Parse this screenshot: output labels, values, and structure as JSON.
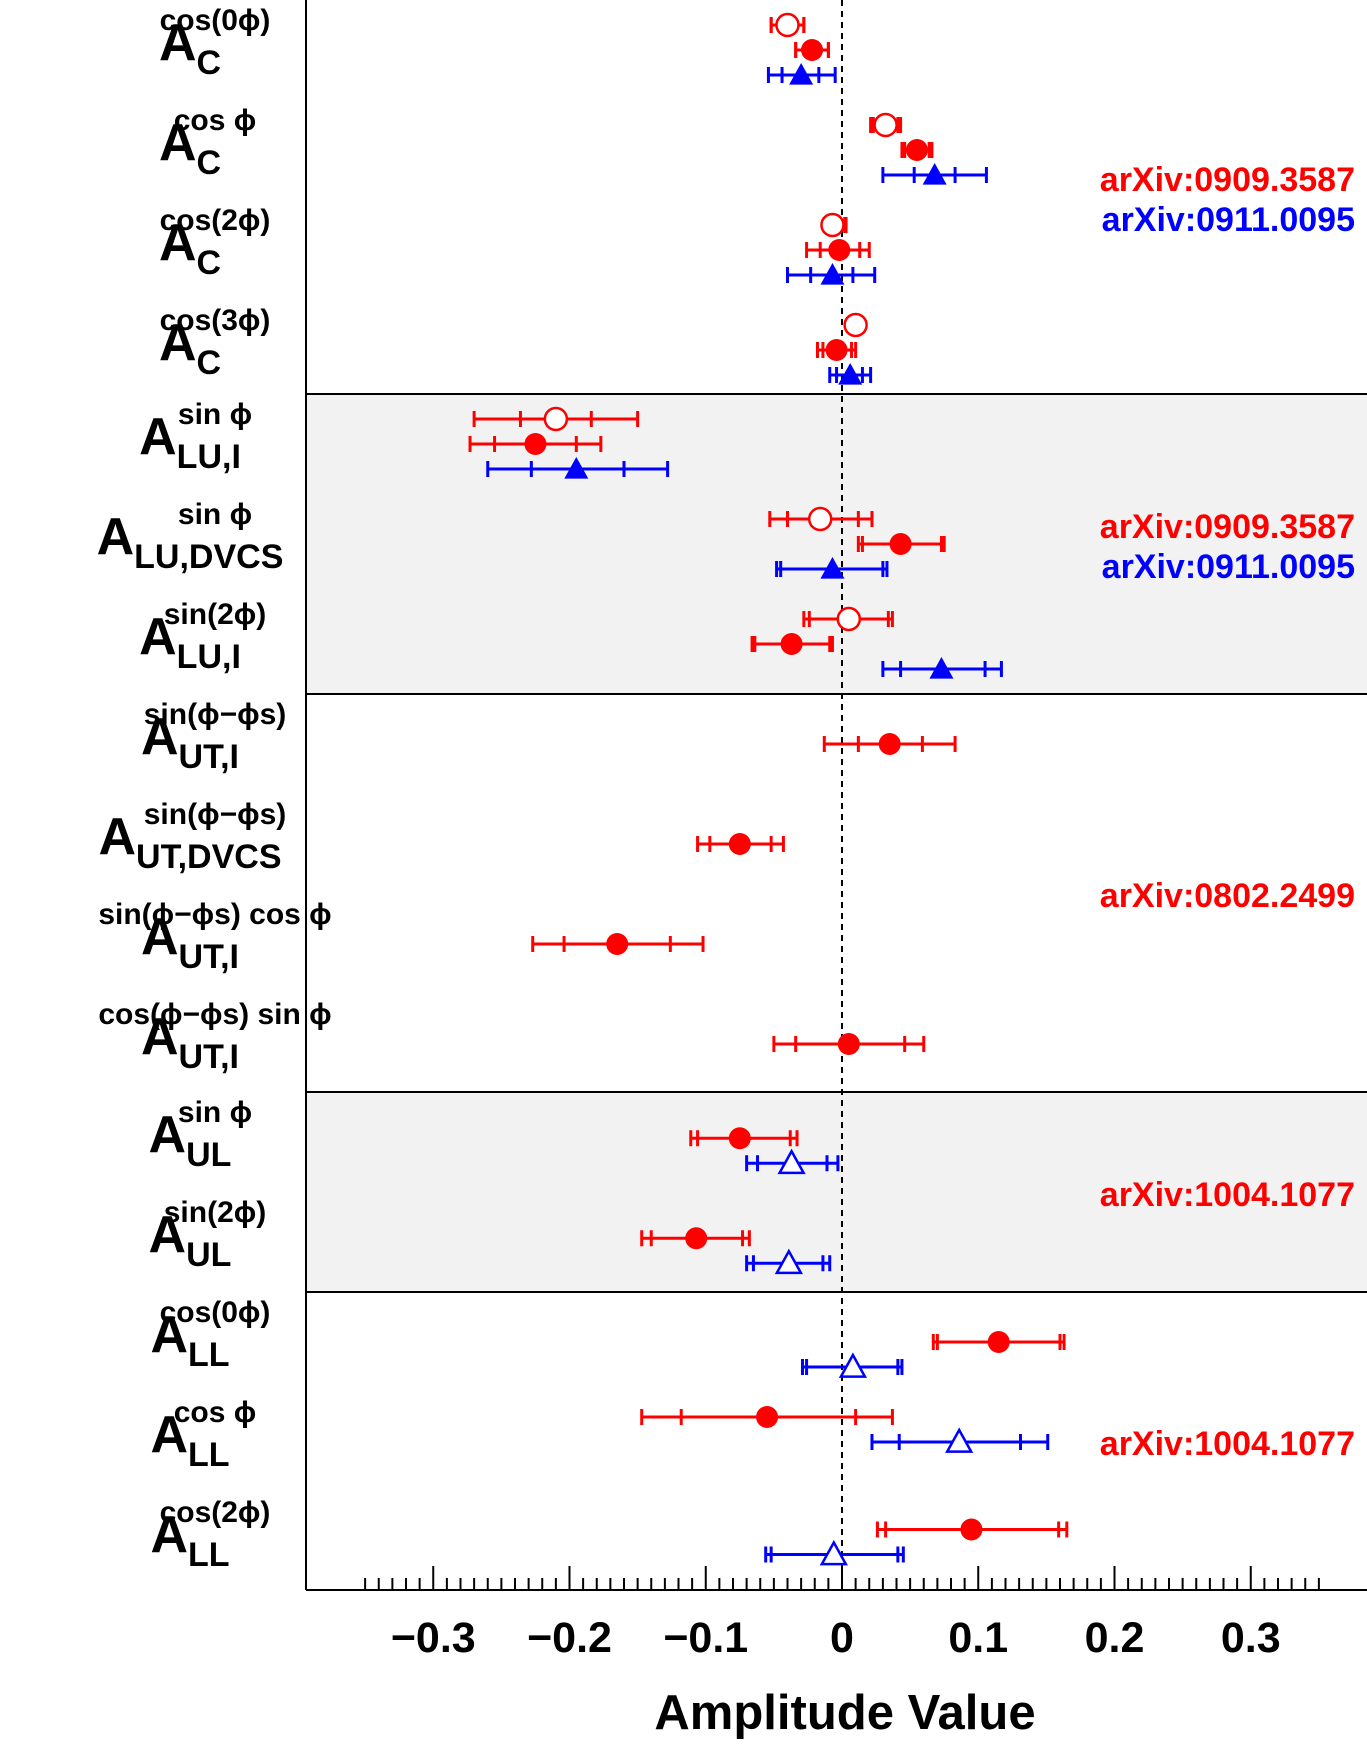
{
  "chart_data": {
    "type": "scatter",
    "xlabel": "Amplitude Value",
    "xlim": [
      -0.35,
      0.35
    ],
    "x_ticks": [
      {
        "value": -0.3,
        "label": "−0.3"
      },
      {
        "value": -0.2,
        "label": "−0.2"
      },
      {
        "value": -0.1,
        "label": "−0.1"
      },
      {
        "value": 0,
        "label": "0"
      },
      {
        "value": 0.1,
        "label": "0.1"
      },
      {
        "value": 0.2,
        "label": "0.2"
      },
      {
        "value": 0.3,
        "label": "0.3"
      }
    ],
    "reference_line": 0,
    "colors": {
      "red": "#ff0000",
      "blue": "#0000ff",
      "band": "#f2f2f2"
    },
    "marker_legend": {
      "filled-circle": "red",
      "open-circle": "red",
      "filled-triangle": "blue",
      "open-triangle": "blue"
    },
    "rows": [
      {
        "label": "A_C^{cos(0φ)}",
        "main": "A",
        "sub": "C",
        "sup": "cos(0ϕ)"
      },
      {
        "label": "A_C^{cos φ}",
        "main": "A",
        "sub": "C",
        "sup": "cos ϕ"
      },
      {
        "label": "A_C^{cos(2φ)}",
        "main": "A",
        "sub": "C",
        "sup": "cos(2ϕ)"
      },
      {
        "label": "A_C^{cos(3φ)}",
        "main": "A",
        "sub": "C",
        "sup": "cos(3ϕ)"
      },
      {
        "label": "A_LU,I^{sin φ}",
        "main": "A",
        "sub": "LU,I",
        "sup": "sin ϕ"
      },
      {
        "label": "A_LU,DVCS^{sin φ}",
        "main": "A",
        "sub": "LU,DVCS",
        "sup": "sin ϕ"
      },
      {
        "label": "A_LU,I^{sin(2φ)}",
        "main": "A",
        "sub": "LU,I",
        "sup": "sin(2ϕ)"
      },
      {
        "label": "A_UT,I^{sin(φ−φs)}",
        "main": "A",
        "sub": "UT,I",
        "sup": "sin(ϕ−ϕs)"
      },
      {
        "label": "A_UT,DVCS^{sin(φ−φs)}",
        "main": "A",
        "sub": "UT,DVCS",
        "sup": "sin(ϕ−ϕs)"
      },
      {
        "label": "A_UT,I^{sin(φ−φs) cos φ}",
        "main": "A",
        "sub": "UT,I",
        "sup": "sin(ϕ−ϕs) cos ϕ"
      },
      {
        "label": "A_UT,I^{cos(φ−φs) sin φ}",
        "main": "A",
        "sub": "UT,I",
        "sup": "cos(ϕ−ϕs) sin ϕ"
      },
      {
        "label": "A_UL^{sin φ}",
        "main": "A",
        "sub": "UL",
        "sup": "sin ϕ"
      },
      {
        "label": "A_UL^{sin(2φ)}",
        "main": "A",
        "sub": "UL",
        "sup": "sin(2ϕ)"
      },
      {
        "label": "A_LL^{cos(0φ)}",
        "main": "A",
        "sub": "LL",
        "sup": "cos(0ϕ)"
      },
      {
        "label": "A_LL^{cos φ}",
        "main": "A",
        "sub": "LL",
        "sup": "cos ϕ"
      },
      {
        "label": "A_LL^{cos(2φ)}",
        "main": "A",
        "sub": "LL",
        "sup": "cos(2ϕ)"
      }
    ],
    "groups": [
      {
        "rows": [
          0,
          3
        ],
        "shaded": false,
        "references": [
          {
            "text": "arXiv:0909.3587",
            "color": "red"
          },
          {
            "text": "arXiv:0911.0095",
            "color": "blue"
          }
        ]
      },
      {
        "rows": [
          4,
          6
        ],
        "shaded": true,
        "references": [
          {
            "text": "arXiv:0909.3587",
            "color": "red"
          },
          {
            "text": "arXiv:0911.0095",
            "color": "blue"
          }
        ]
      },
      {
        "rows": [
          7,
          10
        ],
        "shaded": false,
        "references": [
          {
            "text": "arXiv:0802.2499",
            "color": "red"
          }
        ]
      },
      {
        "rows": [
          11,
          12
        ],
        "shaded": true,
        "references": [
          {
            "text": "arXiv:1004.1077",
            "color": "red"
          }
        ]
      },
      {
        "rows": [
          13,
          15
        ],
        "shaded": false,
        "references": [
          {
            "text": "arXiv:1004.1077",
            "color": "red"
          }
        ]
      }
    ],
    "points": [
      {
        "row": 0,
        "level": 0,
        "marker": "open-circle",
        "color": "red",
        "value": -0.04,
        "stat": [
          -0.052,
          -0.028
        ],
        "total": [
          -0.052,
          -0.028
        ]
      },
      {
        "row": 0,
        "level": 1,
        "marker": "filled-circle",
        "color": "red",
        "value": -0.022,
        "stat": [
          -0.034,
          -0.01
        ],
        "total": [
          -0.034,
          -0.01
        ]
      },
      {
        "row": 0,
        "level": 2,
        "marker": "filled-triangle",
        "color": "blue",
        "value": -0.03,
        "stat": [
          -0.044,
          -0.017
        ],
        "total": [
          -0.054,
          -0.005
        ]
      },
      {
        "row": 1,
        "level": 0,
        "marker": "open-circle",
        "color": "red",
        "value": 0.032,
        "stat": [
          0.023,
          0.041
        ],
        "total": [
          0.021,
          0.043
        ]
      },
      {
        "row": 1,
        "level": 1,
        "marker": "filled-circle",
        "color": "red",
        "value": 0.055,
        "stat": [
          0.046,
          0.064
        ],
        "total": [
          0.044,
          0.066
        ]
      },
      {
        "row": 1,
        "level": 2,
        "marker": "filled-triangle",
        "color": "blue",
        "value": 0.068,
        "stat": [
          0.053,
          0.083
        ],
        "total": [
          0.03,
          0.106
        ]
      },
      {
        "row": 2,
        "level": 0,
        "marker": "open-circle",
        "color": "red",
        "value": -0.007,
        "stat": [
          -0.012,
          0.002
        ],
        "total": [
          -0.013,
          0.003
        ]
      },
      {
        "row": 2,
        "level": 1,
        "marker": "filled-circle",
        "color": "red",
        "value": -0.002,
        "stat": [
          -0.016,
          0.013
        ],
        "total": [
          -0.026,
          0.02
        ]
      },
      {
        "row": 2,
        "level": 2,
        "marker": "filled-triangle",
        "color": "blue",
        "value": -0.007,
        "stat": [
          -0.023,
          0.008
        ],
        "total": [
          -0.04,
          0.024
        ]
      },
      {
        "row": 3,
        "level": 0,
        "marker": "open-circle",
        "color": "red",
        "value": 0.01,
        "stat": [
          0.005,
          0.014
        ],
        "total": [
          0.004,
          0.015
        ]
      },
      {
        "row": 3,
        "level": 1,
        "marker": "filled-circle",
        "color": "red",
        "value": -0.004,
        "stat": [
          -0.014,
          0.007
        ],
        "total": [
          -0.018,
          0.01
        ]
      },
      {
        "row": 3,
        "level": 2,
        "marker": "filled-triangle",
        "color": "blue",
        "value": 0.006,
        "stat": [
          -0.004,
          0.015
        ],
        "total": [
          -0.009,
          0.021
        ]
      },
      {
        "row": 4,
        "level": 0,
        "marker": "open-circle",
        "color": "red",
        "value": -0.21,
        "stat": [
          -0.236,
          -0.184
        ],
        "total": [
          -0.27,
          -0.15
        ]
      },
      {
        "row": 4,
        "level": 1,
        "marker": "filled-circle",
        "color": "red",
        "value": -0.225,
        "stat": [
          -0.255,
          -0.195
        ],
        "total": [
          -0.273,
          -0.177
        ]
      },
      {
        "row": 4,
        "level": 2,
        "marker": "filled-triangle",
        "color": "blue",
        "value": -0.195,
        "stat": [
          -0.228,
          -0.16
        ],
        "total": [
          -0.26,
          -0.128
        ]
      },
      {
        "row": 5,
        "level": 0,
        "marker": "open-circle",
        "color": "red",
        "value": -0.016,
        "stat": [
          -0.04,
          0.012
        ],
        "total": [
          -0.053,
          0.022
        ]
      },
      {
        "row": 5,
        "level": 1,
        "marker": "filled-circle",
        "color": "red",
        "value": 0.043,
        "stat": [
          0.015,
          0.073
        ],
        "total": [
          0.012,
          0.075
        ]
      },
      {
        "row": 5,
        "level": 2,
        "marker": "filled-triangle",
        "color": "blue",
        "value": -0.007,
        "stat": [
          -0.045,
          0.03
        ],
        "total": [
          -0.048,
          0.033
        ]
      },
      {
        "row": 6,
        "level": 0,
        "marker": "open-circle",
        "color": "red",
        "value": 0.005,
        "stat": [
          -0.024,
          0.034
        ],
        "total": [
          -0.028,
          0.037
        ]
      },
      {
        "row": 6,
        "level": 1,
        "marker": "filled-circle",
        "color": "red",
        "value": -0.037,
        "stat": [
          -0.064,
          -0.009
        ],
        "total": [
          -0.066,
          -0.007
        ]
      },
      {
        "row": 6,
        "level": 2,
        "marker": "filled-triangle",
        "color": "blue",
        "value": 0.073,
        "stat": [
          0.043,
          0.105
        ],
        "total": [
          0.03,
          0.117
        ]
      },
      {
        "row": 7,
        "level": 1,
        "marker": "filled-circle",
        "color": "red",
        "value": 0.035,
        "stat": [
          0.012,
          0.059
        ],
        "total": [
          -0.013,
          0.083
        ]
      },
      {
        "row": 8,
        "level": 1,
        "marker": "filled-circle",
        "color": "red",
        "value": -0.075,
        "stat": [
          -0.097,
          -0.052
        ],
        "total": [
          -0.106,
          -0.043
        ]
      },
      {
        "row": 9,
        "level": 1,
        "marker": "filled-circle",
        "color": "red",
        "value": -0.165,
        "stat": [
          -0.204,
          -0.126
        ],
        "total": [
          -0.227,
          -0.102
        ]
      },
      {
        "row": 10,
        "level": 1,
        "marker": "filled-circle",
        "color": "red",
        "value": 0.005,
        "stat": [
          -0.034,
          0.046
        ],
        "total": [
          -0.05,
          0.06
        ]
      },
      {
        "row": 11,
        "level": 0.85,
        "marker": "filled-circle",
        "color": "red",
        "value": -0.075,
        "stat": [
          -0.106,
          -0.038
        ],
        "total": [
          -0.111,
          -0.033
        ]
      },
      {
        "row": 11,
        "level": 1.85,
        "marker": "open-triangle",
        "color": "blue",
        "value": -0.037,
        "stat": [
          -0.062,
          -0.011
        ],
        "total": [
          -0.07,
          -0.003
        ]
      },
      {
        "row": 12,
        "level": 0.85,
        "marker": "filled-circle",
        "color": "red",
        "value": -0.107,
        "stat": [
          -0.14,
          -0.073
        ],
        "total": [
          -0.147,
          -0.068
        ]
      },
      {
        "row": 12,
        "level": 1.85,
        "marker": "open-triangle",
        "color": "blue",
        "value": -0.039,
        "stat": [
          -0.065,
          -0.014
        ],
        "total": [
          -0.07,
          -0.009
        ]
      },
      {
        "row": 13,
        "level": 1,
        "marker": "filled-circle",
        "color": "red",
        "value": 0.115,
        "stat": [
          0.07,
          0.16
        ],
        "total": [
          0.067,
          0.163
        ]
      },
      {
        "row": 13,
        "level": 2,
        "marker": "open-triangle",
        "color": "blue",
        "value": 0.008,
        "stat": [
          -0.026,
          0.041
        ],
        "total": [
          -0.029,
          0.044
        ]
      },
      {
        "row": 14,
        "level": 0,
        "marker": "filled-circle",
        "color": "red",
        "value": -0.055,
        "stat": [
          -0.118,
          0.01
        ],
        "total": [
          -0.147,
          0.037
        ]
      },
      {
        "row": 14,
        "level": 1,
        "marker": "open-triangle",
        "color": "blue",
        "value": 0.086,
        "stat": [
          0.042,
          0.131
        ],
        "total": [
          0.022,
          0.151
        ]
      },
      {
        "row": 15,
        "level": 0.5,
        "marker": "filled-circle",
        "color": "red",
        "value": 0.095,
        "stat": [
          0.032,
          0.159
        ],
        "total": [
          0.026,
          0.165
        ]
      },
      {
        "row": 15,
        "level": 1.5,
        "marker": "open-triangle",
        "color": "blue",
        "value": -0.006,
        "stat": [
          -0.052,
          0.041
        ],
        "total": [
          -0.056,
          0.045
        ]
      }
    ]
  }
}
